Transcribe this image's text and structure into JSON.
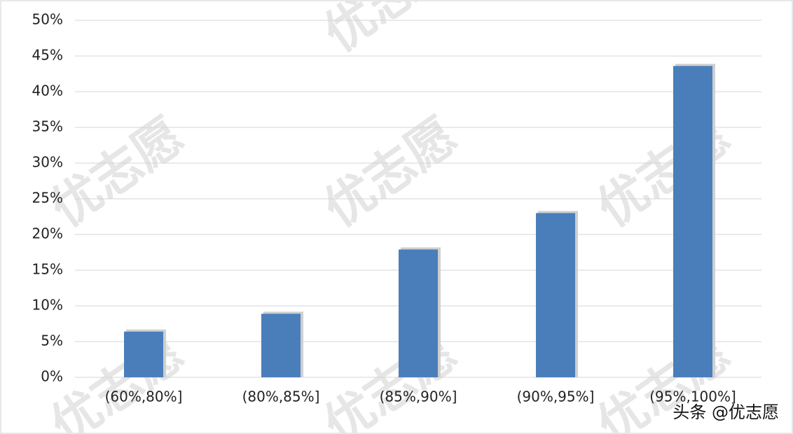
{
  "chart_data": {
    "type": "bar",
    "categories": [
      "(60%,80%]",
      "(80%,85%]",
      "(85%,90%]",
      "(90%,95%]",
      "(95%,100%]"
    ],
    "values": [
      6.4,
      8.9,
      17.9,
      23.0,
      43.6
    ],
    "color": "#4a7ebb",
    "ylim": [
      0,
      50
    ],
    "yticks": [
      {
        "value": 0,
        "label": "0%"
      },
      {
        "value": 5,
        "label": "5%"
      },
      {
        "value": 10,
        "label": "10%"
      },
      {
        "value": 15,
        "label": "15%"
      },
      {
        "value": 20,
        "label": "20%"
      },
      {
        "value": 25,
        "label": "25%"
      },
      {
        "value": 30,
        "label": "30%"
      },
      {
        "value": 35,
        "label": "35%"
      },
      {
        "value": 40,
        "label": "40%"
      },
      {
        "value": 45,
        "label": "45%"
      },
      {
        "value": 50,
        "label": "50%"
      }
    ],
    "grid": true,
    "watermark": "优志愿",
    "annotation": "头条 @优志愿"
  }
}
